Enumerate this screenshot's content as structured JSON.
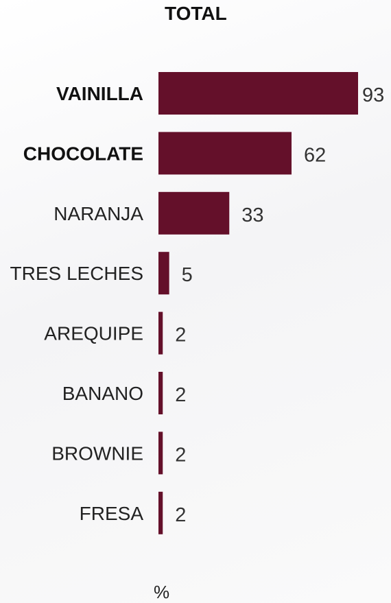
{
  "chart_data": {
    "type": "bar",
    "orientation": "horizontal",
    "title": "TOTAL",
    "categories": [
      "VAINILLA",
      "CHOCOLATE",
      "NARANJA",
      "TRES LECHES",
      "AREQUIPE",
      "BANANO",
      "BROWNIE",
      "FRESA"
    ],
    "values": [
      93,
      62,
      33,
      5,
      2,
      2,
      2,
      2
    ],
    "bold_categories": [
      "VAINILLA",
      "CHOCOLATE"
    ],
    "unit": "%",
    "xlim": [
      0,
      93
    ],
    "grid": false,
    "legend": "none",
    "bar_color": "#64102a"
  }
}
